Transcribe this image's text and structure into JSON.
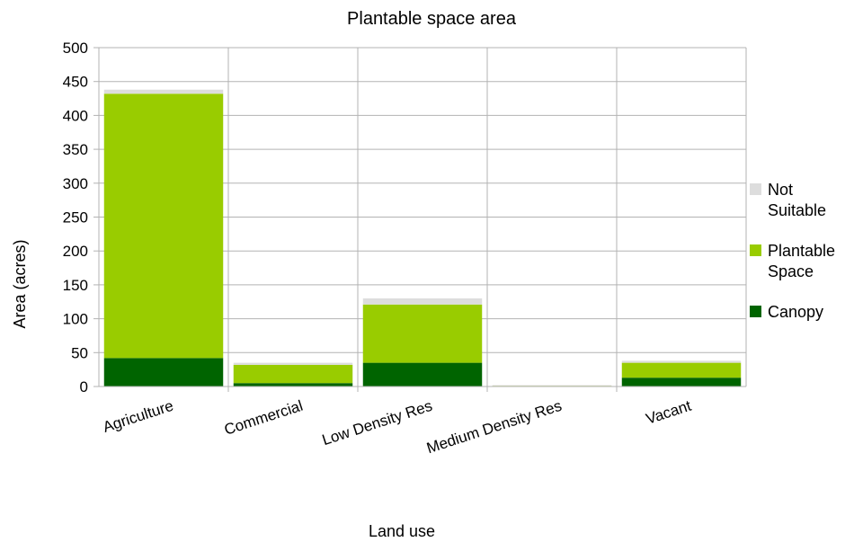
{
  "chart_data": {
    "type": "bar",
    "stacked": true,
    "title": "Plantable space area",
    "xlabel": "Land use",
    "ylabel": "Area (acres)",
    "ylim": [
      0,
      500
    ],
    "yticks": [
      0,
      50,
      100,
      150,
      200,
      250,
      300,
      350,
      400,
      450,
      500
    ],
    "grid": true,
    "legend_position": "right",
    "categories": [
      "Agriculture",
      "Commercial",
      "Low Density Res",
      "Medium Density Res",
      "Vacant"
    ],
    "series": [
      {
        "name": "Canopy",
        "color": "#006400",
        "values": [
          42,
          5,
          35,
          0.5,
          13
        ]
      },
      {
        "name": "Plantable Space",
        "color": "#99cc00",
        "values": [
          390,
          27,
          86,
          0.5,
          22
        ]
      },
      {
        "name": "Not Suitable",
        "color": "#dddddd",
        "values": [
          6,
          3,
          9,
          1,
          3
        ]
      }
    ]
  }
}
